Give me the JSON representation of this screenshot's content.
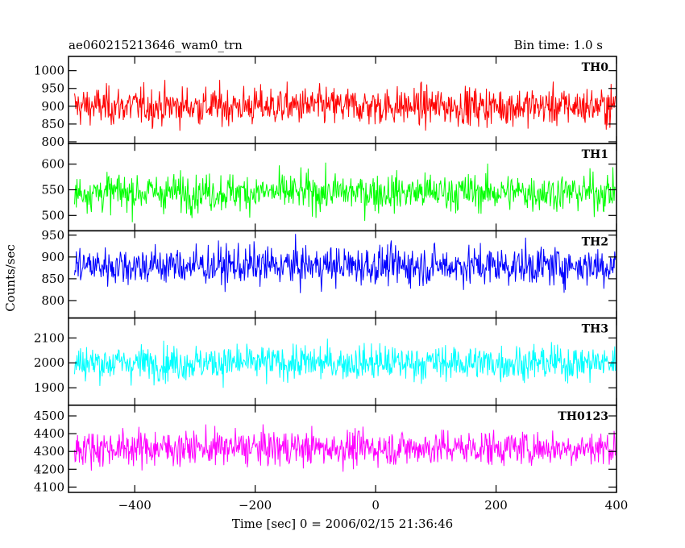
{
  "chart_data": {
    "type": "line",
    "title": "ae060215213646_wam0_trn",
    "subtitle": "Bin time: 1.0 s",
    "xlabel": "Time [sec] 0 = 2006/02/15 21:36:46",
    "ylabel": "Counts/sec",
    "xlim": [
      -510,
      400
    ],
    "x_ticks": [
      -400,
      -200,
      0,
      200,
      400
    ],
    "x_tick_labels": [
      "−400",
      "−200",
      "0",
      "200",
      "400"
    ],
    "x_start": -500,
    "x_end": 398,
    "panels": [
      {
        "name": "TH0",
        "color": "#ff0000",
        "ylim": [
          795,
          1040
        ],
        "ticks": [
          800,
          850,
          900,
          950,
          1000
        ],
        "tick_labels": [
          "800",
          "850",
          "900",
          "950",
          "1000"
        ],
        "mean": 900,
        "amplitude": 38
      },
      {
        "name": "TH1",
        "color": "#00ff00",
        "ylim": [
          470,
          640
        ],
        "ticks": [
          500,
          550,
          600
        ],
        "tick_labels": [
          "500",
          "550",
          "600"
        ],
        "mean": 545,
        "amplitude": 26
      },
      {
        "name": "TH2",
        "color": "#0000ff",
        "ylim": [
          760,
          960
        ],
        "ticks": [
          800,
          850,
          900,
          950
        ],
        "tick_labels": [
          "800",
          "850",
          "900",
          "950"
        ],
        "mean": 880,
        "amplitude": 32
      },
      {
        "name": "TH3",
        "color": "#00ffff",
        "ylim": [
          1830,
          2180
        ],
        "ticks": [
          1900,
          2000,
          2100
        ],
        "tick_labels": [
          "1900",
          "2000",
          "2100"
        ],
        "mean": 2000,
        "amplitude": 50
      },
      {
        "name": "TH0123",
        "color": "#ff00ff",
        "ylim": [
          4070,
          4560
        ],
        "ticks": [
          4100,
          4200,
          4300,
          4400,
          4500
        ],
        "tick_labels": [
          "4100",
          "4200",
          "4300",
          "4400",
          "4500"
        ],
        "mean": 4320,
        "amplitude": 70
      }
    ]
  }
}
